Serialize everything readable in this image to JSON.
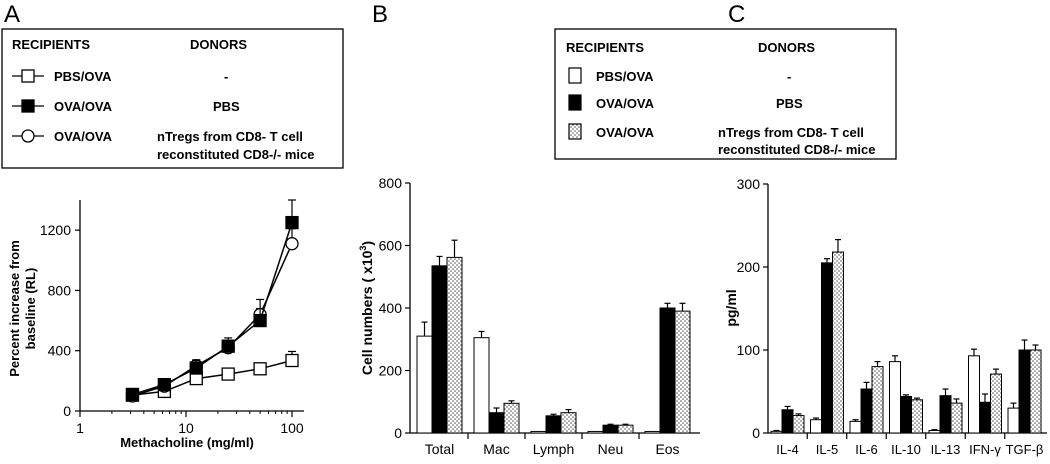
{
  "panel_letters": [
    "A",
    "B",
    "C"
  ],
  "legend_A": {
    "header_recipients": "RECIPIENTS",
    "header_donors": "DONORS",
    "rows": [
      {
        "recipient": "PBS/OVA",
        "donor": "-",
        "marker": "open-square"
      },
      {
        "recipient": "OVA/OVA",
        "donor": "PBS",
        "marker": "filled-square"
      },
      {
        "recipient": "OVA/OVA",
        "donor": "nTregs from CD8- T cell",
        "donor2": "reconstituted CD8-/- mice",
        "marker": "open-circle"
      }
    ]
  },
  "legend_C": {
    "header_recipients": "RECIPIENTS",
    "header_donors": "DONORS",
    "rows": [
      {
        "recipient": "PBS/OVA",
        "donor": "-",
        "fill": "white"
      },
      {
        "recipient": "OVA/OVA",
        "donor": "PBS",
        "fill": "black"
      },
      {
        "recipient": "OVA/OVA",
        "donor": "nTregs from CD8- T cell",
        "donor2": "reconstituted CD8-/- mice",
        "fill": "dotted"
      }
    ]
  },
  "chart_data": [
    {
      "panel": "A",
      "type": "line",
      "xscale": "log",
      "xlabel": "Methacholine (mg/ml)",
      "ylabel_line1": "Percent  increase from",
      "ylabel_line2": "baseline (RL)",
      "xlim": [
        1,
        100
      ],
      "ylim": [
        0,
        1400
      ],
      "xticks": [
        1,
        10,
        100
      ],
      "xtick_labels": [
        "1",
        "10",
        "100"
      ],
      "yticks": [
        0,
        400,
        800,
        1200
      ],
      "ytick_labels": [
        "0",
        "400",
        "800",
        "1200"
      ],
      "x": [
        3.125,
        6.25,
        12.5,
        25,
        50,
        100
      ],
      "series": [
        {
          "name": "PBS/OVA",
          "marker": "open-square",
          "values": [
            105,
            130,
            215,
            245,
            280,
            335
          ],
          "errors": [
            15,
            20,
            25,
            30,
            35,
            60
          ]
        },
        {
          "name": "OVA/OVA PBS",
          "marker": "filled-square",
          "values": [
            110,
            175,
            285,
            430,
            600,
            1250
          ],
          "errors": [
            20,
            25,
            50,
            55,
            80,
            150
          ]
        },
        {
          "name": "OVA/OVA nTregs",
          "marker": "open-circle",
          "values": [
            100,
            165,
            300,
            420,
            640,
            1110
          ],
          "errors": [
            15,
            25,
            40,
            50,
            100,
            100
          ]
        }
      ]
    },
    {
      "panel": "B",
      "type": "bar",
      "ylabel": "Cell numbers ( x10",
      "ylabel_sup": "3",
      "ylabel_end": ")",
      "ylim": [
        0,
        800
      ],
      "yticks": [
        0,
        200,
        400,
        600,
        800
      ],
      "ytick_labels": [
        "0",
        "200",
        "400",
        "600",
        "800"
      ],
      "categories": [
        "Total",
        "Mac",
        "Lymph",
        "Neu",
        "Eos"
      ],
      "series": [
        {
          "name": "PBS/OVA",
          "fill": "white",
          "values": [
            310,
            305,
            5,
            5,
            5
          ],
          "errors": [
            45,
            20,
            0,
            0,
            0
          ]
        },
        {
          "name": "OVA/OVA PBS",
          "fill": "black",
          "values": [
            535,
            65,
            55,
            25,
            400
          ],
          "errors": [
            30,
            15,
            5,
            3,
            15
          ]
        },
        {
          "name": "OVA/OVA nTregs",
          "fill": "dotted",
          "values": [
            562,
            95,
            65,
            25,
            390
          ],
          "errors": [
            55,
            8,
            10,
            3,
            25
          ]
        }
      ]
    },
    {
      "panel": "C",
      "type": "bar",
      "ylabel": "pg/ml",
      "ylim": [
        0,
        300
      ],
      "yticks": [
        0,
        100,
        200,
        300
      ],
      "ytick_labels": [
        "0",
        "100",
        "200",
        "300"
      ],
      "categories": [
        "IL-4",
        "IL-5",
        "IL-6",
        "IL-10",
        "IL-13",
        "IFN-γ",
        "TGF-β"
      ],
      "series": [
        {
          "name": "PBS/OVA",
          "fill": "white",
          "values": [
            2,
            16,
            14,
            86,
            3,
            93,
            30
          ],
          "errors": [
            1,
            2,
            2,
            7,
            1,
            8,
            6
          ]
        },
        {
          "name": "OVA/OVA PBS",
          "fill": "black",
          "values": [
            28,
            205,
            53,
            44,
            45,
            37,
            100
          ],
          "errors": [
            4,
            5,
            8,
            2,
            8,
            10,
            12
          ]
        },
        {
          "name": "OVA/OVA nTregs",
          "fill": "dotted",
          "values": [
            21,
            218,
            80,
            40,
            36,
            71,
            100
          ],
          "errors": [
            2,
            15,
            6,
            2,
            5,
            6,
            6
          ]
        }
      ]
    }
  ]
}
